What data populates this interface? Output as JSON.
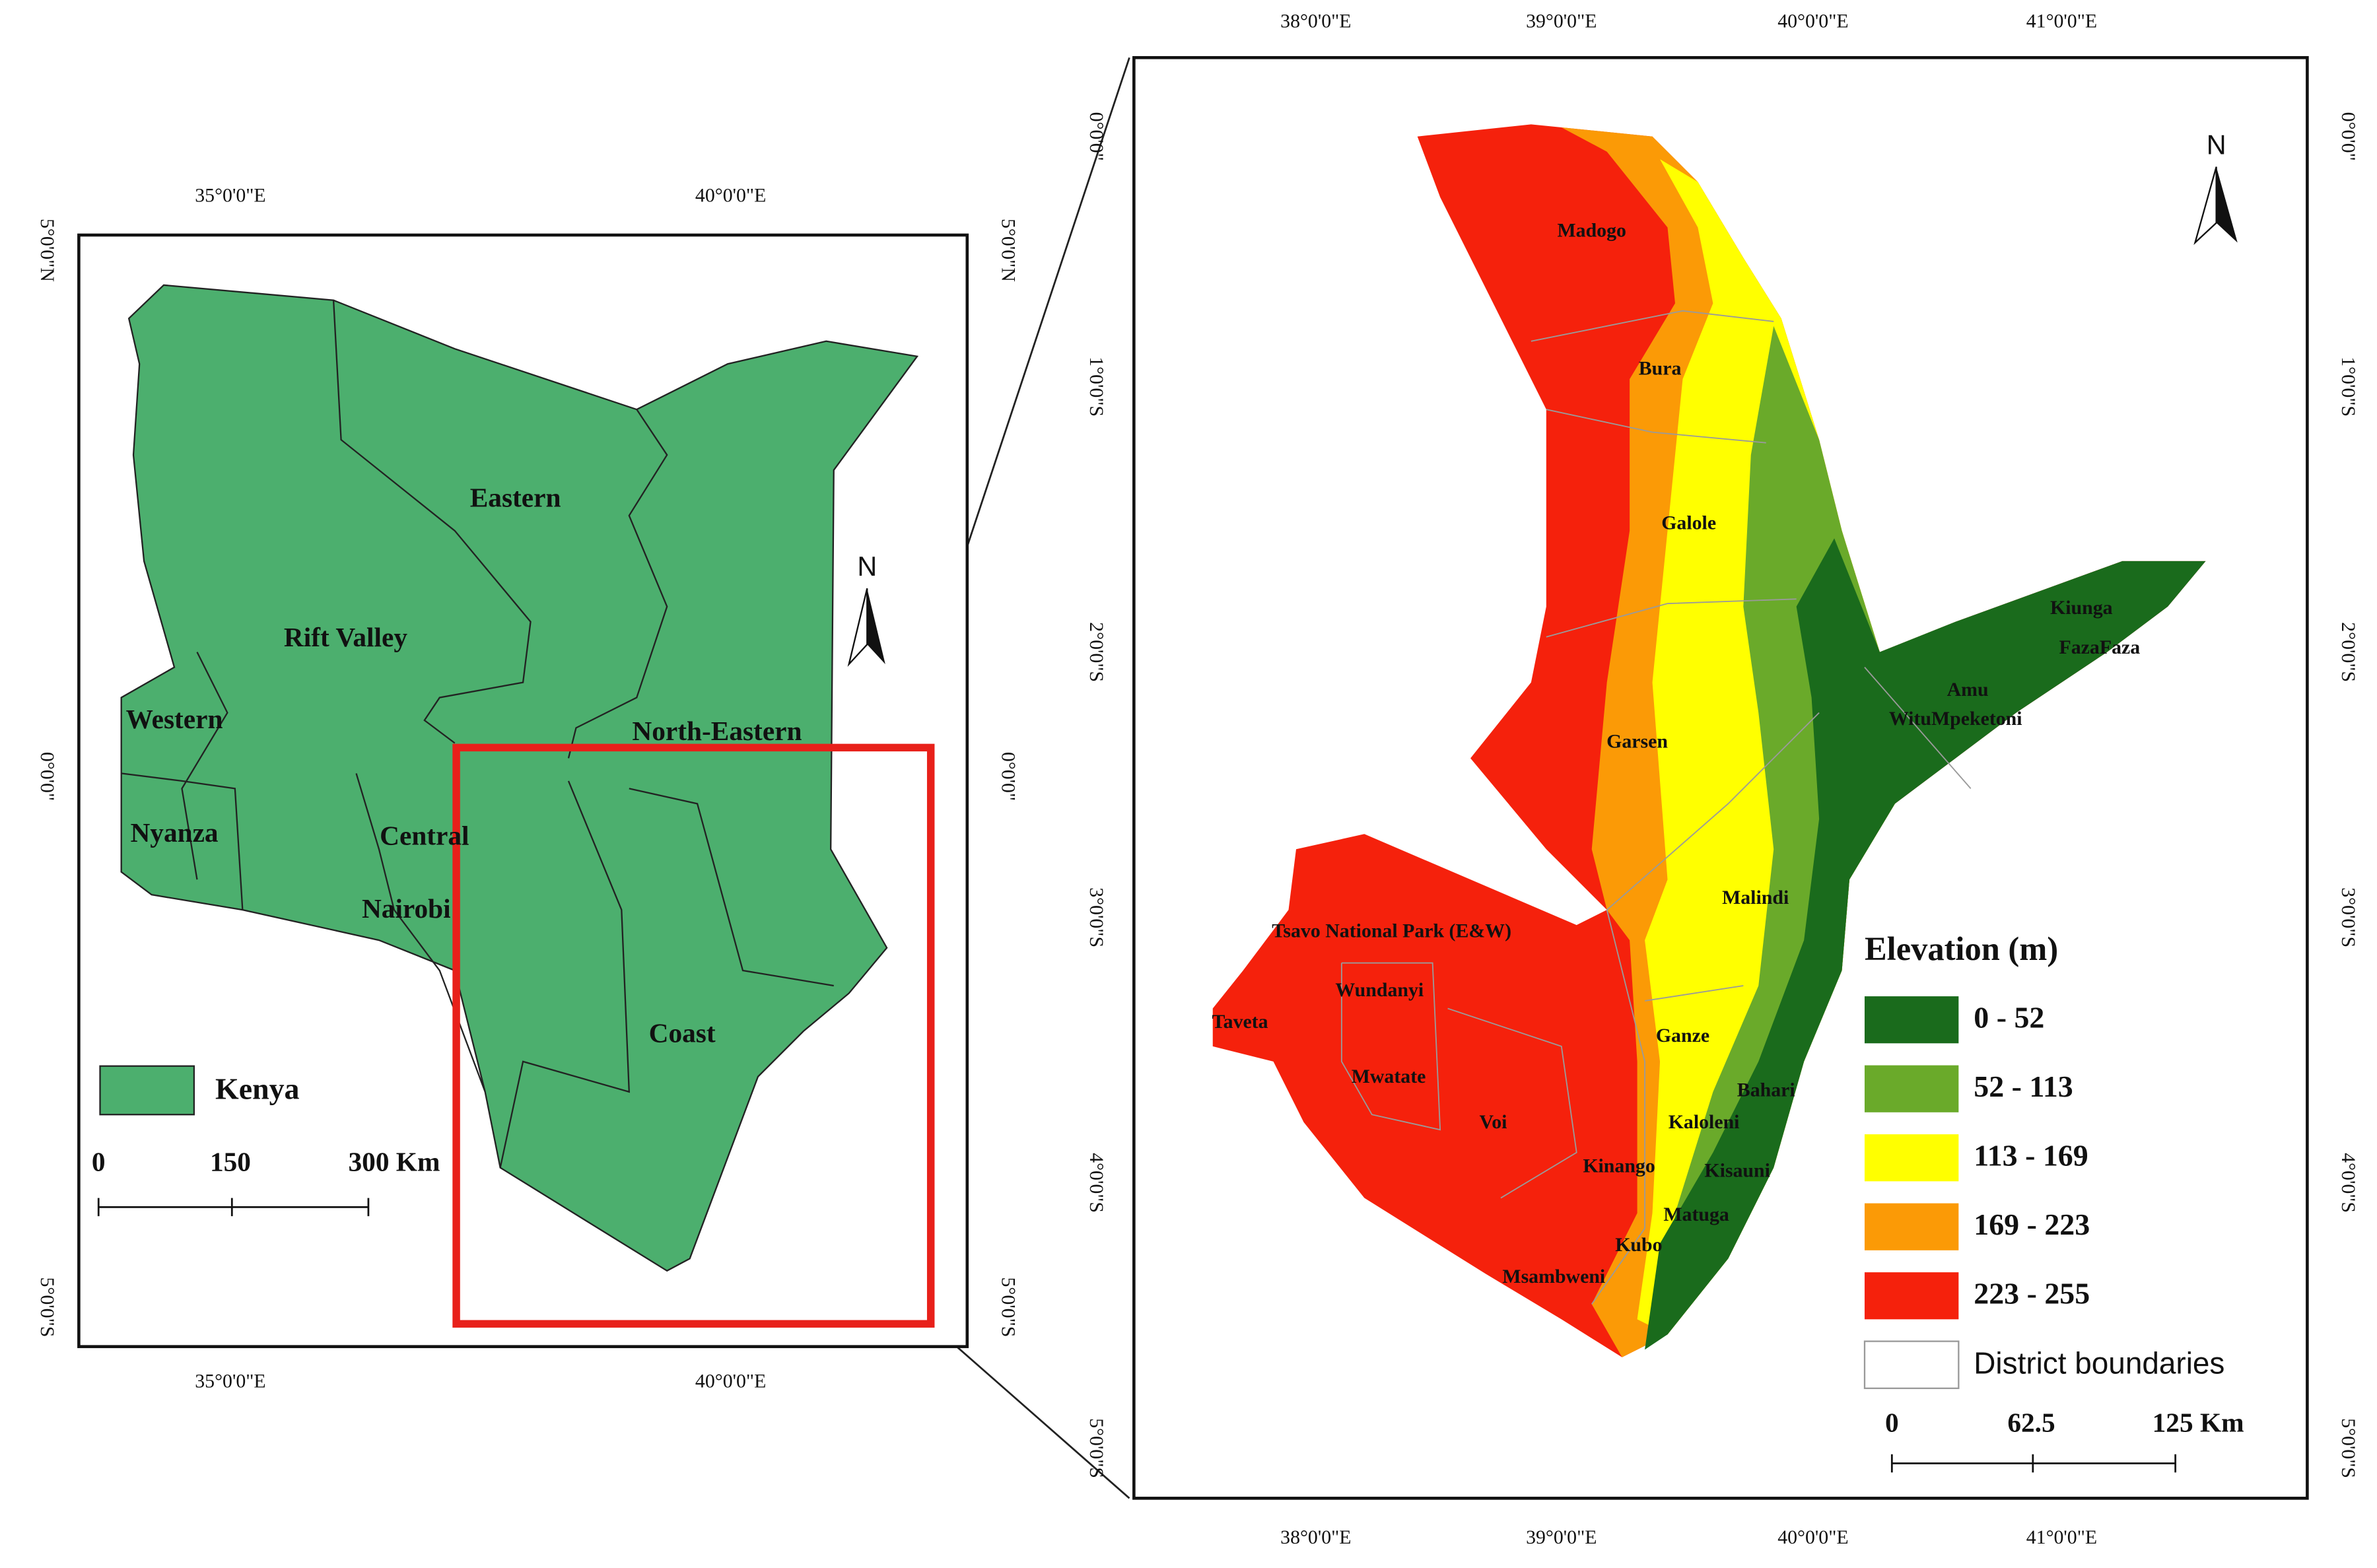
{
  "overview_map": {
    "lon_labels": [
      "35°0'0\"E",
      "40°0'0\"E"
    ],
    "lat_labels": [
      "5°0'0\"N",
      "0°0'0\"",
      "5°0'0\"S"
    ],
    "regions": [
      "Eastern",
      "Rift Valley",
      "Western",
      "North-Eastern",
      "Nyanza",
      "Central",
      "Nairobi",
      "Coast"
    ],
    "north": "N",
    "legend": "Kenya",
    "scale": [
      "0",
      "150",
      "300 Km"
    ]
  },
  "detail_map": {
    "lon_labels": [
      "38°0'0\"E",
      "39°0'0\"E",
      "40°0'0\"E",
      "41°0'0\"E"
    ],
    "lat_labels": [
      "0°0'0\"",
      "1°0'0\"S",
      "2°0'0\"S",
      "3°0'0\"S",
      "4°0'0\"S",
      "5°0'0\"S"
    ],
    "districts": [
      "Madogo",
      "Bura",
      "Galole",
      "Garsen",
      "Kiunga",
      "FazaFaza",
      "Amu",
      "WituMpeketoni",
      "Malindi",
      "Tsavo National Park (E&W)",
      "Wundanyi",
      "Taveta",
      "Ganze",
      "Mwatate",
      "Bahari",
      "Voi",
      "Kaloleni",
      "Kinango",
      "Kisauni",
      "Matuga",
      "Kubo",
      "Msambweni"
    ],
    "north": "N",
    "legend_title": "Elevation (m)",
    "legend_items": [
      "0 - 52",
      "52 - 113",
      "113 - 169",
      "169 - 223",
      "223 - 255",
      "District boundaries"
    ],
    "scale": [
      "0",
      "62.5",
      "125 Km"
    ]
  }
}
